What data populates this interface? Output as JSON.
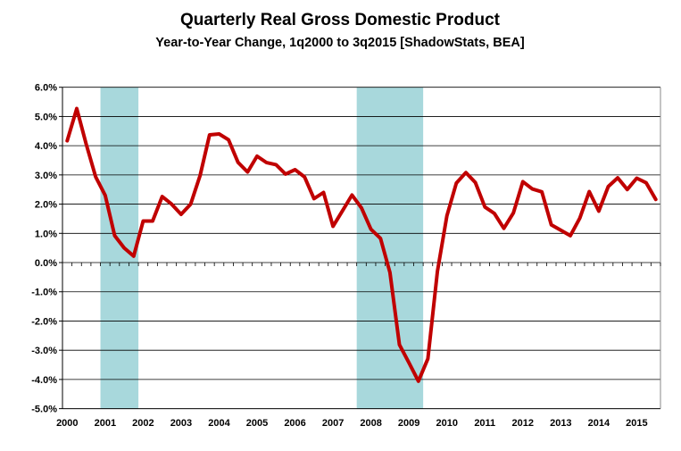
{
  "chart_data": {
    "type": "line",
    "title": "Quarterly Real Gross Domestic Product",
    "subtitle": "Year-to-Year Change, 1q2000 to 3q2015 [ShadowStats, BEA]",
    "xlabel": "",
    "ylabel": "",
    "x_tick_labels": [
      "2000",
      "2001",
      "2002",
      "2003",
      "2004",
      "2005",
      "2006",
      "2007",
      "2008",
      "2009",
      "2010",
      "2011",
      "2012",
      "2013",
      "2014",
      "2015"
    ],
    "y_tick_labels": [
      "6.0%",
      "5.0%",
      "4.0%",
      "3.0%",
      "2.0%",
      "1.0%",
      "0.0%",
      "-1.0%",
      "-2.0%",
      "-3.0%",
      "-4.0%",
      "-5.0%"
    ],
    "ylim": [
      -5,
      6
    ],
    "y_unit": "%",
    "grid": true,
    "legend": "none",
    "x_start": "2000-Q1",
    "x_end": "2015-Q3",
    "series": [
      {
        "color": "#c00000",
        "values": [
          4.17,
          5.27,
          4.05,
          2.93,
          2.3,
          0.92,
          0.5,
          0.22,
          1.42,
          1.42,
          2.26,
          2.0,
          1.65,
          2.0,
          2.98,
          4.37,
          4.4,
          4.2,
          3.43,
          3.1,
          3.64,
          3.42,
          3.35,
          3.03,
          3.18,
          2.93,
          2.19,
          2.4,
          1.24,
          1.77,
          2.31,
          1.87,
          1.14,
          0.83,
          -0.34,
          -2.81,
          -3.43,
          -4.06,
          -3.29,
          -0.3,
          1.6,
          2.72,
          3.08,
          2.74,
          1.9,
          1.68,
          1.17,
          1.7,
          2.77,
          2.52,
          2.42,
          1.29,
          1.11,
          0.92,
          1.52,
          2.43,
          1.76,
          2.6,
          2.9,
          2.5,
          2.89,
          2.73,
          2.16
        ]
      }
    ],
    "shaded_periods": [
      {
        "start": "2001-Q1",
        "end": "2001-Q4"
      },
      {
        "start": "2007-Q4",
        "end": "2009-Q2"
      }
    ],
    "shade_color": "#a8d8dc",
    "grid_color": "#000000"
  }
}
